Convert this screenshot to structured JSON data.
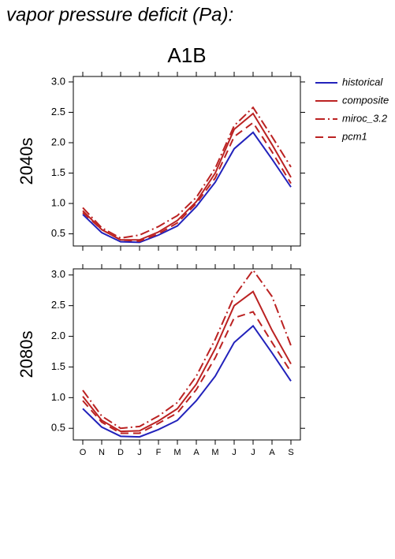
{
  "title": "vapor pressure deficit (Pa):",
  "subtitle": "A1B",
  "chart_data": [
    {
      "type": "line",
      "ylabel": "2040s",
      "categories": [
        null,
        null,
        null,
        null,
        null,
        null,
        null,
        null,
        null,
        null,
        null,
        null
      ],
      "ylim": [
        0.3,
        3.09
      ],
      "yticks": [
        {
          "value": 0.5,
          "label": "0.5"
        },
        {
          "value": 1,
          "label": "1.0"
        },
        {
          "value": 1.5,
          "label": "1.5"
        },
        {
          "value": 2,
          "label": "2.0"
        },
        {
          "value": 2.5,
          "label": "2.5"
        },
        {
          "value": 3,
          "label": "3.0"
        }
      ],
      "legend": "outside right",
      "series": [
        {
          "name": "historical",
          "color": "#2222bb",
          "dash": "none",
          "values": [
            0.82,
            0.52,
            0.37,
            0.36,
            0.48,
            0.63,
            0.95,
            1.35,
            1.9,
            2.17,
            1.73,
            1.27
          ]
        },
        {
          "name": "composite",
          "color": "#bb2222",
          "dash": "none",
          "values": [
            0.88,
            0.57,
            0.4,
            0.4,
            0.53,
            0.72,
            1.03,
            1.5,
            2.22,
            2.48,
            1.97,
            1.43
          ]
        },
        {
          "name": "miroc_3.2",
          "color": "#bb2222",
          "dash": "12,4,2,4",
          "values": [
            0.93,
            0.6,
            0.43,
            0.48,
            0.62,
            0.8,
            1.1,
            1.58,
            2.28,
            2.58,
            2.1,
            1.6
          ]
        },
        {
          "name": "pcm1",
          "color": "#bb2222",
          "dash": "10,6",
          "values": [
            0.85,
            0.57,
            0.4,
            0.38,
            0.5,
            0.68,
            1.0,
            1.42,
            2.1,
            2.33,
            1.85,
            1.33
          ]
        }
      ]
    },
    {
      "type": "line",
      "ylabel": "2080s",
      "categories": [
        "O",
        "N",
        "D",
        "J",
        "F",
        "M",
        "A",
        "M",
        "J",
        "J",
        "A",
        "S"
      ],
      "ylim": [
        0.31,
        3.1
      ],
      "yticks": [
        {
          "value": 0.5,
          "label": "0.5"
        },
        {
          "value": 1,
          "label": "1.0"
        },
        {
          "value": 1.5,
          "label": "1.5"
        },
        {
          "value": 2,
          "label": "2.0"
        },
        {
          "value": 2.5,
          "label": "2.5"
        },
        {
          "value": 3,
          "label": "3.0"
        }
      ],
      "series": [
        {
          "color": "#2222bb",
          "dash": "none",
          "values": [
            0.82,
            0.52,
            0.37,
            0.36,
            0.48,
            0.63,
            0.95,
            1.35,
            1.9,
            2.17,
            1.73,
            1.27
          ]
        },
        {
          "color": "#bb2222",
          "dash": "none",
          "values": [
            1.02,
            0.63,
            0.45,
            0.46,
            0.62,
            0.82,
            1.22,
            1.8,
            2.5,
            2.73,
            2.1,
            1.55
          ]
        },
        {
          "color": "#bb2222",
          "dash": "12,4,2,4",
          "values": [
            1.12,
            0.7,
            0.5,
            0.53,
            0.7,
            0.92,
            1.35,
            1.95,
            2.65,
            3.08,
            2.65,
            1.85
          ]
        },
        {
          "color": "#bb2222",
          "dash": "10,6",
          "values": [
            0.95,
            0.6,
            0.42,
            0.42,
            0.58,
            0.75,
            1.13,
            1.65,
            2.3,
            2.4,
            1.9,
            1.42
          ]
        }
      ]
    }
  ]
}
